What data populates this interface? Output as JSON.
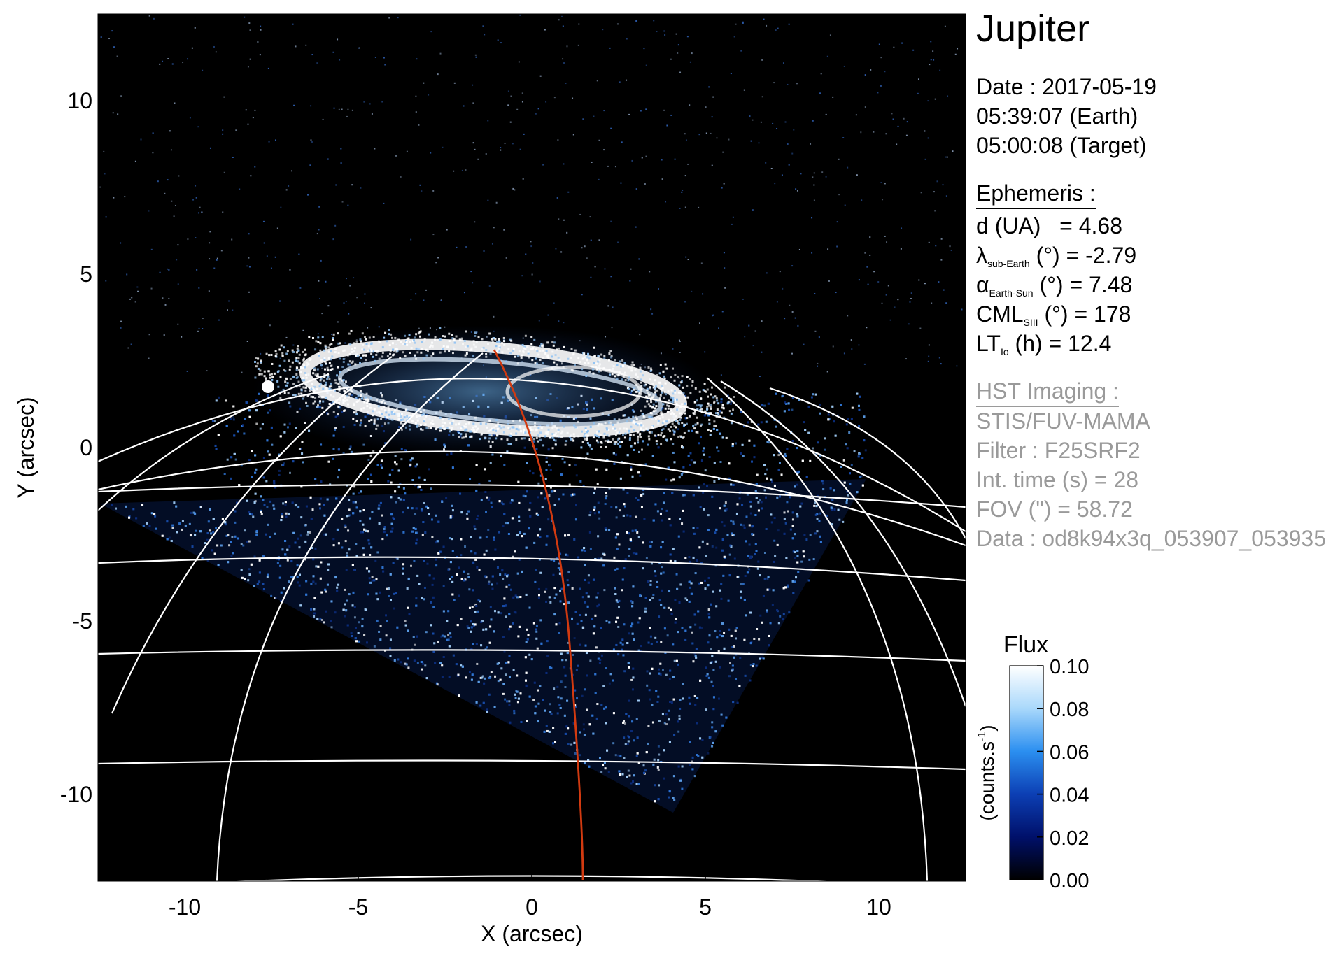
{
  "title": "Jupiter",
  "date": {
    "line1": "Date : 2017-05-19",
    "line2": "05:39:07 (Earth)",
    "line3": "05:00:08 (Target)"
  },
  "ephemeris": {
    "heading": "Ephemeris :",
    "d": {
      "label": "d (UA)",
      "eq": "= 4.68"
    },
    "lambda": {
      "sym": "λ",
      "sub": "sub-Earth",
      "rest": "(°) = -2.79"
    },
    "alpha": {
      "sym": "α",
      "sub": "Earth-Sun",
      "rest": "(°) = 7.48"
    },
    "cml": {
      "sym": "CML",
      "sub": "SIII",
      "rest": "(°) = 178"
    },
    "lt": {
      "sym": "LT",
      "sub": "Io",
      "rest": "(h) = 12.4"
    }
  },
  "hst": {
    "heading": "HST Imaging :",
    "instrument": "STIS/FUV-MAMA",
    "filter": "Filter : F25SRF2",
    "int_time": "Int. time (s) = 28",
    "fov": "FOV (\") = 58.72",
    "data": "Data : od8k94x3q_053907_053935"
  },
  "colorbar": {
    "title": "Flux",
    "units": "(counts.s-1)",
    "ticks": [
      "0.10",
      "0.08",
      "0.06",
      "0.04",
      "0.02",
      "0.00"
    ],
    "range": [
      0,
      0.1
    ],
    "colors": [
      "#000000",
      "#00106a",
      "#0c3fb4",
      "#2b8ff0",
      "#a9d8fb",
      "#ffffff"
    ]
  },
  "chart_data": {
    "type": "image",
    "xlabel": "X (arcsec)",
    "ylabel": "Y (arcsec)",
    "xlim": [
      -12.5,
      12.5
    ],
    "ylim": [
      -12.5,
      12.5
    ],
    "xticks": [
      "-10",
      "-5",
      "0",
      "5",
      "10"
    ],
    "yticks": [
      "10",
      "5",
      "0",
      "-5",
      "-10"
    ],
    "xtick_values": [
      -10,
      -5,
      0,
      5,
      10
    ],
    "ytick_values": [
      10,
      5,
      0,
      -5,
      -10
    ],
    "colors": {
      "background": "#000000",
      "grid": "#ffffff",
      "meridian": "#d23a10",
      "aurora": "#ffffff"
    }
  }
}
